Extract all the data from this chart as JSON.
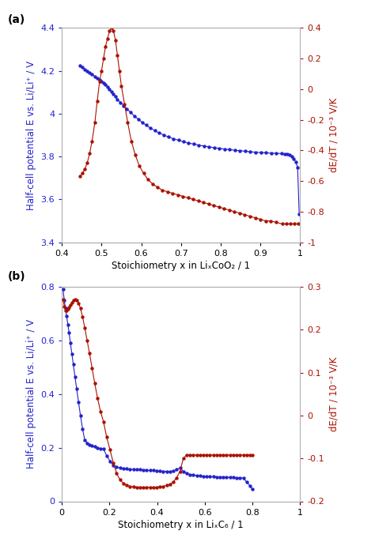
{
  "panel_a": {
    "label": "(a)",
    "blue_x": [
      0.445,
      0.452,
      0.458,
      0.464,
      0.47,
      0.476,
      0.483,
      0.489,
      0.495,
      0.5,
      0.505,
      0.51,
      0.515,
      0.52,
      0.525,
      0.53,
      0.535,
      0.54,
      0.548,
      0.556,
      0.564,
      0.573,
      0.582,
      0.592,
      0.602,
      0.612,
      0.623,
      0.634,
      0.645,
      0.657,
      0.669,
      0.681,
      0.694,
      0.706,
      0.719,
      0.732,
      0.745,
      0.758,
      0.771,
      0.784,
      0.797,
      0.81,
      0.823,
      0.836,
      0.849,
      0.862,
      0.875,
      0.888,
      0.901,
      0.914,
      0.927,
      0.94,
      0.953,
      0.961,
      0.968,
      0.974,
      0.979,
      0.984,
      0.989,
      0.994,
      0.998
    ],
    "blue_y": [
      4.225,
      4.215,
      4.207,
      4.199,
      4.191,
      4.183,
      4.174,
      4.166,
      4.158,
      4.15,
      4.142,
      4.134,
      4.125,
      4.115,
      4.104,
      4.092,
      4.08,
      4.066,
      4.052,
      4.037,
      4.022,
      4.006,
      3.99,
      3.975,
      3.96,
      3.946,
      3.933,
      3.921,
      3.91,
      3.9,
      3.891,
      3.883,
      3.876,
      3.869,
      3.863,
      3.858,
      3.853,
      3.849,
      3.845,
      3.841,
      3.838,
      3.835,
      3.832,
      3.829,
      3.827,
      3.825,
      3.822,
      3.82,
      3.819,
      3.817,
      3.816,
      3.815,
      3.814,
      3.812,
      3.81,
      3.807,
      3.8,
      3.79,
      3.775,
      3.75,
      3.53
    ],
    "red_x": [
      0.445,
      0.452,
      0.458,
      0.464,
      0.47,
      0.476,
      0.483,
      0.489,
      0.495,
      0.5,
      0.505,
      0.51,
      0.515,
      0.52,
      0.525,
      0.53,
      0.535,
      0.54,
      0.545,
      0.55,
      0.558,
      0.566,
      0.575,
      0.585,
      0.595,
      0.606,
      0.617,
      0.629,
      0.641,
      0.653,
      0.666,
      0.679,
      0.692,
      0.705,
      0.718,
      0.731,
      0.744,
      0.757,
      0.77,
      0.783,
      0.796,
      0.809,
      0.822,
      0.835,
      0.848,
      0.861,
      0.874,
      0.887,
      0.9,
      0.913,
      0.926,
      0.94,
      0.955,
      0.965,
      0.975,
      0.985,
      0.995
    ],
    "red_y": [
      -0.57,
      -0.55,
      -0.52,
      -0.48,
      -0.42,
      -0.34,
      -0.22,
      -0.08,
      0.05,
      0.12,
      0.2,
      0.28,
      0.33,
      0.38,
      0.4,
      0.38,
      0.32,
      0.22,
      0.12,
      0.02,
      -0.1,
      -0.22,
      -0.34,
      -0.43,
      -0.5,
      -0.55,
      -0.59,
      -0.62,
      -0.64,
      -0.66,
      -0.67,
      -0.68,
      -0.69,
      -0.7,
      -0.71,
      -0.72,
      -0.73,
      -0.74,
      -0.75,
      -0.76,
      -0.77,
      -0.78,
      -0.79,
      -0.8,
      -0.81,
      -0.82,
      -0.83,
      -0.84,
      -0.85,
      -0.86,
      -0.86,
      -0.87,
      -0.88,
      -0.88,
      -0.88,
      -0.88,
      -0.88
    ],
    "blue_ylabel": "Half-cell potential E vs. Li/Li⁺ / V",
    "red_ylabel": "dE/dT / 10⁻³ V/K",
    "xlabel": "Stoichiometry x in LiₓCoO₂ / 1",
    "blue_ylim": [
      3.4,
      4.4
    ],
    "red_ylim": [
      -1.0,
      0.4
    ],
    "xlim": [
      0.4,
      1.0
    ],
    "xticks": [
      0.4,
      0.5,
      0.6,
      0.7,
      0.8,
      0.9,
      1.0
    ],
    "blue_yticks": [
      3.4,
      3.6,
      3.8,
      4.0,
      4.2,
      4.4
    ],
    "red_yticks": [
      -1.0,
      -0.8,
      -0.6,
      -0.4,
      -0.2,
      0.0,
      0.2,
      0.4
    ]
  },
  "panel_b": {
    "label": "(b)",
    "blue_x": [
      0.005,
      0.01,
      0.015,
      0.02,
      0.025,
      0.03,
      0.036,
      0.042,
      0.048,
      0.055,
      0.062,
      0.07,
      0.078,
      0.087,
      0.096,
      0.106,
      0.116,
      0.127,
      0.138,
      0.15,
      0.162,
      0.175,
      0.188,
      0.202,
      0.216,
      0.23,
      0.244,
      0.258,
      0.272,
      0.286,
      0.3,
      0.314,
      0.328,
      0.342,
      0.356,
      0.37,
      0.384,
      0.398,
      0.412,
      0.426,
      0.44,
      0.454,
      0.468,
      0.482,
      0.496,
      0.51,
      0.524,
      0.538,
      0.552,
      0.566,
      0.58,
      0.594,
      0.608,
      0.622,
      0.636,
      0.65,
      0.664,
      0.678,
      0.692,
      0.706,
      0.72,
      0.734,
      0.748,
      0.762,
      0.776,
      0.79,
      0.8
    ],
    "blue_y": [
      0.79,
      0.75,
      0.72,
      0.69,
      0.66,
      0.63,
      0.59,
      0.55,
      0.51,
      0.465,
      0.42,
      0.37,
      0.32,
      0.27,
      0.228,
      0.218,
      0.212,
      0.208,
      0.204,
      0.2,
      0.197,
      0.195,
      0.17,
      0.15,
      0.135,
      0.128,
      0.125,
      0.123,
      0.121,
      0.12,
      0.119,
      0.118,
      0.118,
      0.117,
      0.116,
      0.115,
      0.115,
      0.114,
      0.113,
      0.112,
      0.112,
      0.111,
      0.113,
      0.118,
      0.125,
      0.112,
      0.105,
      0.1,
      0.098,
      0.096,
      0.095,
      0.094,
      0.093,
      0.092,
      0.092,
      0.091,
      0.091,
      0.09,
      0.09,
      0.089,
      0.089,
      0.088,
      0.088,
      0.087,
      0.072,
      0.058,
      0.045
    ],
    "red_x": [
      0.005,
      0.01,
      0.015,
      0.02,
      0.025,
      0.03,
      0.036,
      0.042,
      0.048,
      0.055,
      0.062,
      0.07,
      0.078,
      0.087,
      0.096,
      0.106,
      0.116,
      0.127,
      0.138,
      0.15,
      0.162,
      0.175,
      0.188,
      0.202,
      0.216,
      0.23,
      0.244,
      0.258,
      0.272,
      0.286,
      0.3,
      0.314,
      0.328,
      0.342,
      0.356,
      0.37,
      0.384,
      0.398,
      0.412,
      0.426,
      0.44,
      0.454,
      0.468,
      0.482,
      0.496,
      0.51,
      0.524,
      0.538,
      0.552,
      0.566,
      0.58,
      0.594,
      0.608,
      0.622,
      0.636,
      0.65,
      0.664,
      0.678,
      0.692,
      0.706,
      0.72,
      0.734,
      0.748,
      0.762,
      0.776,
      0.79,
      0.8
    ],
    "red_y": [
      0.27,
      0.255,
      0.245,
      0.245,
      0.248,
      0.253,
      0.258,
      0.263,
      0.268,
      0.27,
      0.268,
      0.262,
      0.25,
      0.23,
      0.205,
      0.175,
      0.145,
      0.11,
      0.075,
      0.04,
      0.01,
      -0.015,
      -0.05,
      -0.08,
      -0.11,
      -0.135,
      -0.15,
      -0.158,
      -0.162,
      -0.165,
      -0.166,
      -0.167,
      -0.167,
      -0.167,
      -0.167,
      -0.167,
      -0.167,
      -0.167,
      -0.166,
      -0.165,
      -0.163,
      -0.16,
      -0.155,
      -0.145,
      -0.13,
      -0.1,
      -0.092,
      -0.092,
      -0.092,
      -0.092,
      -0.092,
      -0.092,
      -0.092,
      -0.092,
      -0.092,
      -0.092,
      -0.092,
      -0.092,
      -0.092,
      -0.092,
      -0.092,
      -0.092,
      -0.092,
      -0.092,
      -0.092,
      -0.092,
      -0.092
    ],
    "blue_ylabel": "Half-cell potential E vs. Li/Li⁺ / V",
    "red_ylabel": "dE/dT / 10⁻³ V/K",
    "xlabel": "Stoichiometry x in LiₓC₆ / 1",
    "blue_ylim": [
      0.0,
      0.8
    ],
    "red_ylim": [
      -0.2,
      0.3
    ],
    "xlim": [
      0.0,
      1.0
    ],
    "xticks": [
      0.0,
      0.2,
      0.4,
      0.6,
      0.8,
      1.0
    ],
    "blue_yticks": [
      0.0,
      0.2,
      0.4,
      0.6,
      0.8
    ],
    "red_yticks": [
      -0.2,
      -0.1,
      0.0,
      0.1,
      0.2,
      0.3
    ]
  },
  "blue_color": "#2222CC",
  "red_color": "#AA1100",
  "marker_size": 3.2,
  "line_width": 0.8,
  "bg_color": "#ffffff",
  "spine_color": "#b0b0b0",
  "label_fontsize": 8.5,
  "tick_fontsize": 8,
  "panel_label_fontsize": 10
}
